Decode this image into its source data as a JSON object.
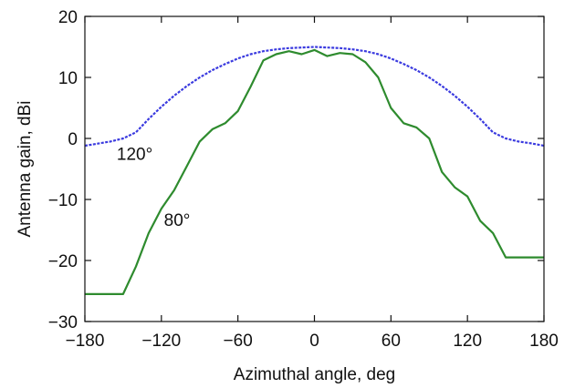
{
  "chart_data": {
    "type": "line",
    "title": "",
    "xlabel": "Azimuthal angle, deg",
    "ylabel": "Antenna gain, dBi",
    "xlim": [
      -180,
      180
    ],
    "ylim": [
      -30,
      20
    ],
    "x_ticks": [
      -180,
      -120,
      -60,
      0,
      60,
      120,
      180
    ],
    "y_ticks": [
      -30,
      -20,
      -10,
      0,
      10,
      20
    ],
    "x_tick_labels": [
      "−180",
      "−120",
      "−60",
      "0",
      "60",
      "120",
      "180"
    ],
    "y_tick_labels": [
      "−30",
      "−20",
      "−10",
      "0",
      "10",
      "20"
    ],
    "grid": false,
    "legend": "none",
    "series": [
      {
        "color": "#3a3adf",
        "dashed": true,
        "x": [
          -180,
          -160,
          -150,
          -140,
          -130,
          -120,
          -110,
          -100,
          -90,
          -80,
          -70,
          -60,
          -50,
          -40,
          -30,
          -20,
          -10,
          0,
          10,
          20,
          30,
          40,
          50,
          60,
          70,
          80,
          90,
          100,
          110,
          120,
          130,
          140,
          150,
          160,
          170,
          180
        ],
        "y": [
          -1.2,
          -0.5,
          0,
          1,
          3.2,
          5.2,
          7,
          8.6,
          10,
          11.2,
          12.2,
          13.1,
          13.8,
          14.3,
          14.6,
          14.8,
          14.9,
          15,
          14.9,
          14.8,
          14.6,
          14.3,
          13.8,
          13.1,
          12.2,
          11.2,
          10,
          8.6,
          7,
          5.2,
          3.2,
          1,
          0,
          -0.5,
          -0.8,
          -1.2
        ]
      },
      {
        "color": "#2e8b2e",
        "dashed": false,
        "x": [
          -180,
          -150,
          -140,
          -130,
          -120,
          -110,
          -100,
          -90,
          -80,
          -70,
          -60,
          -50,
          -40,
          -30,
          -20,
          -10,
          0,
          10,
          20,
          30,
          40,
          50,
          60,
          70,
          80,
          90,
          100,
          110,
          120,
          130,
          140,
          150,
          180
        ],
        "y": [
          -25.5,
          -25.5,
          -21,
          -15.5,
          -11.5,
          -8.5,
          -4.5,
          -0.5,
          1.5,
          2.5,
          4.5,
          8.5,
          12.8,
          13.8,
          14.3,
          13.8,
          14.5,
          13.5,
          14,
          13.8,
          12.5,
          10,
          5,
          2.5,
          1.8,
          0,
          -5.5,
          -8,
          -9.5,
          -13.5,
          -15.5,
          -19.5,
          -19.5
        ]
      }
    ],
    "annotations": [
      {
        "text": "120°",
        "x": -155,
        "y": -3.5
      },
      {
        "text": "80°",
        "x": -118,
        "y": -14.3
      }
    ]
  }
}
